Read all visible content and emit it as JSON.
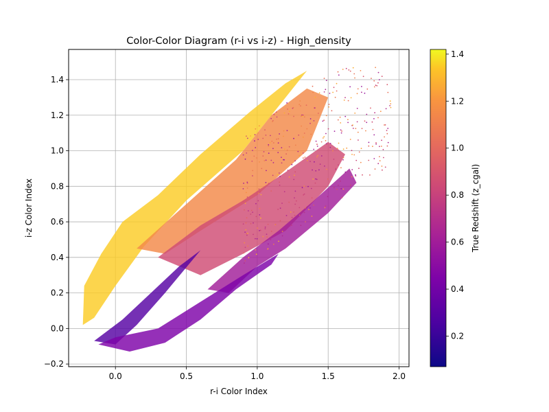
{
  "chart_data": {
    "type": "scatter",
    "title": "Color-Color Diagram (r-i vs i-z) - High_density",
    "xlabel": "r-i Color Index",
    "ylabel": "i-z Color Index",
    "xlim": [
      -0.33,
      2.07
    ],
    "ylim": [
      -0.215,
      1.57
    ],
    "xticks": [
      0.0,
      0.5,
      1.0,
      1.5,
      2.0
    ],
    "xtick_labels": [
      "0.0",
      "0.5",
      "1.0",
      "1.5",
      "2.0"
    ],
    "yticks": [
      -0.2,
      0.0,
      0.2,
      0.4,
      0.6,
      0.8,
      1.0,
      1.2,
      1.4
    ],
    "ytick_labels": [
      "−0.2",
      "0.0",
      "0.2",
      "0.4",
      "0.6",
      "0.8",
      "1.0",
      "1.2",
      "1.4"
    ],
    "grid": true,
    "colorbar": {
      "label": "True Redshift (z_cgal)",
      "colormap": "plasma",
      "range": [
        0.07,
        1.42
      ],
      "ticks": [
        0.2,
        0.4,
        0.6,
        0.8,
        1.0,
        1.2,
        1.4
      ],
      "tick_labels": [
        "0.2",
        "0.4",
        "0.6",
        "0.8",
        "1.0",
        "1.2",
        "1.4"
      ]
    },
    "series": [
      {
        "description_values": "approximate point-cloud regions (r-i, i-z) with redshift",
        "regions": [
          {
            "z": 1.35,
            "points": [
              [
                -0.23,
                0.02
              ],
              [
                -0.22,
                0.24
              ],
              [
                -0.1,
                0.42
              ],
              [
                0.05,
                0.6
              ],
              [
                0.3,
                0.75
              ],
              [
                0.6,
                0.98
              ],
              [
                0.95,
                1.22
              ],
              [
                1.2,
                1.38
              ],
              [
                1.35,
                1.45
              ],
              [
                0.9,
                1.0
              ],
              [
                0.5,
                0.72
              ],
              [
                0.2,
                0.46
              ],
              [
                0.0,
                0.24
              ],
              [
                -0.15,
                0.06
              ]
            ]
          },
          {
            "z": 1.15,
            "points": [
              [
                0.15,
                0.45
              ],
              [
                0.5,
                0.7
              ],
              [
                0.85,
                0.95
              ],
              [
                1.1,
                1.2
              ],
              [
                1.35,
                1.35
              ],
              [
                1.5,
                1.3
              ],
              [
                1.35,
                1.0
              ],
              [
                1.0,
                0.75
              ],
              [
                0.6,
                0.55
              ],
              [
                0.35,
                0.42
              ]
            ]
          },
          {
            "z": 0.85,
            "points": [
              [
                0.3,
                0.4
              ],
              [
                0.6,
                0.58
              ],
              [
                0.9,
                0.72
              ],
              [
                1.2,
                0.88
              ],
              [
                1.5,
                1.05
              ],
              [
                1.62,
                0.98
              ],
              [
                1.5,
                0.8
              ],
              [
                1.2,
                0.55
              ],
              [
                0.9,
                0.42
              ],
              [
                0.6,
                0.3
              ]
            ]
          },
          {
            "z": 0.6,
            "points": [
              [
                0.65,
                0.22
              ],
              [
                0.9,
                0.4
              ],
              [
                1.15,
                0.55
              ],
              [
                1.4,
                0.72
              ],
              [
                1.65,
                0.9
              ],
              [
                1.7,
                0.82
              ],
              [
                1.5,
                0.65
              ],
              [
                1.2,
                0.45
              ],
              [
                1.0,
                0.35
              ],
              [
                0.8,
                0.2
              ]
            ]
          },
          {
            "z": 0.3,
            "points": [
              [
                -0.15,
                -0.07
              ],
              [
                0.05,
                0.05
              ],
              [
                0.25,
                0.2
              ],
              [
                0.45,
                0.35
              ],
              [
                0.6,
                0.44
              ],
              [
                0.35,
                0.2
              ],
              [
                0.15,
                0.02
              ],
              [
                0.0,
                -0.09
              ]
            ]
          },
          {
            "z": 0.45,
            "points": [
              [
                -0.12,
                -0.09
              ],
              [
                0.1,
                -0.13
              ],
              [
                0.35,
                -0.08
              ],
              [
                0.6,
                0.05
              ],
              [
                0.85,
                0.22
              ],
              [
                1.1,
                0.36
              ],
              [
                1.15,
                0.42
              ],
              [
                0.9,
                0.3
              ],
              [
                0.6,
                0.15
              ],
              [
                0.3,
                0.0
              ],
              [
                0.0,
                -0.05
              ]
            ]
          }
        ]
      }
    ]
  }
}
